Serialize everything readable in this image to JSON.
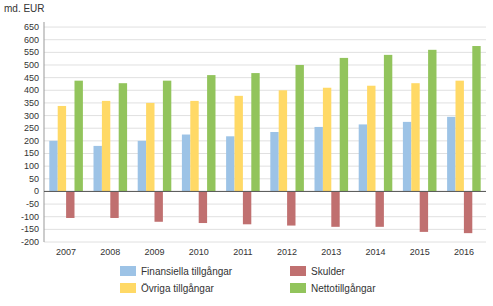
{
  "chart_data": {
    "type": "bar",
    "y_label": "md. EUR",
    "categories": [
      "2007",
      "2008",
      "2009",
      "2010",
      "2011",
      "2012",
      "2013",
      "2014",
      "2015",
      "2016"
    ],
    "series": [
      {
        "name": "Finansiella tillgångar",
        "color": "#9dc3e6",
        "values": [
          200,
          180,
          200,
          225,
          218,
          235,
          255,
          265,
          275,
          295
        ]
      },
      {
        "name": "Övriga tillgångar",
        "color": "#ffd966",
        "values": [
          338,
          358,
          350,
          358,
          378,
          400,
          410,
          418,
          428,
          438
        ]
      },
      {
        "name": "Skulder",
        "color": "#c07070",
        "values": [
          -105,
          -105,
          -120,
          -125,
          -130,
          -135,
          -140,
          -140,
          -160,
          -165
        ]
      },
      {
        "name": "Nettotillgångar",
        "color": "#92c45c",
        "values": [
          438,
          428,
          438,
          460,
          468,
          500,
          528,
          540,
          560,
          575
        ]
      }
    ],
    "ylim": [
      -200,
      670
    ],
    "yticks": [
      -200,
      -150,
      -100,
      -50,
      0,
      50,
      100,
      150,
      200,
      250,
      300,
      350,
      400,
      450,
      500,
      550,
      600,
      650
    ],
    "grid": true,
    "legend": "bottom"
  }
}
